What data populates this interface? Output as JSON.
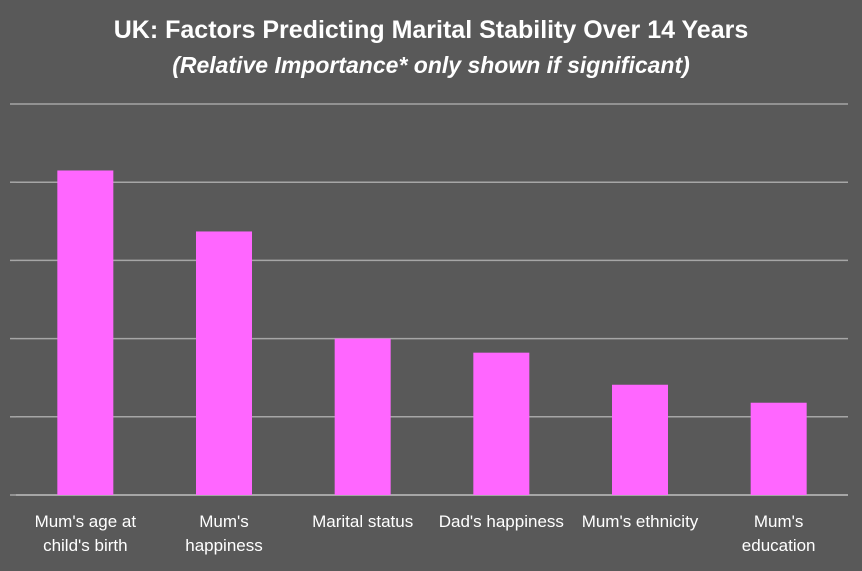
{
  "chart_data": {
    "type": "bar",
    "title": "UK: Factors Predicting Marital Stability Over 14 Years",
    "subtitle": "(Relative Importance* only shown if significant)",
    "categories": [
      "Mum's age at\nchild's birth",
      "Mum's\nhappiness",
      "Marital status",
      "Dad's happiness",
      "Mum's ethnicity",
      "Mum's\neducation"
    ],
    "values": [
      4.15,
      3.37,
      2.0,
      1.82,
      1.41,
      1.18
    ],
    "ylim": [
      0,
      5
    ],
    "grid": true,
    "bar_color": "#ff66ff",
    "background_color": "#595959",
    "grid_color": "#a6a6a6"
  }
}
